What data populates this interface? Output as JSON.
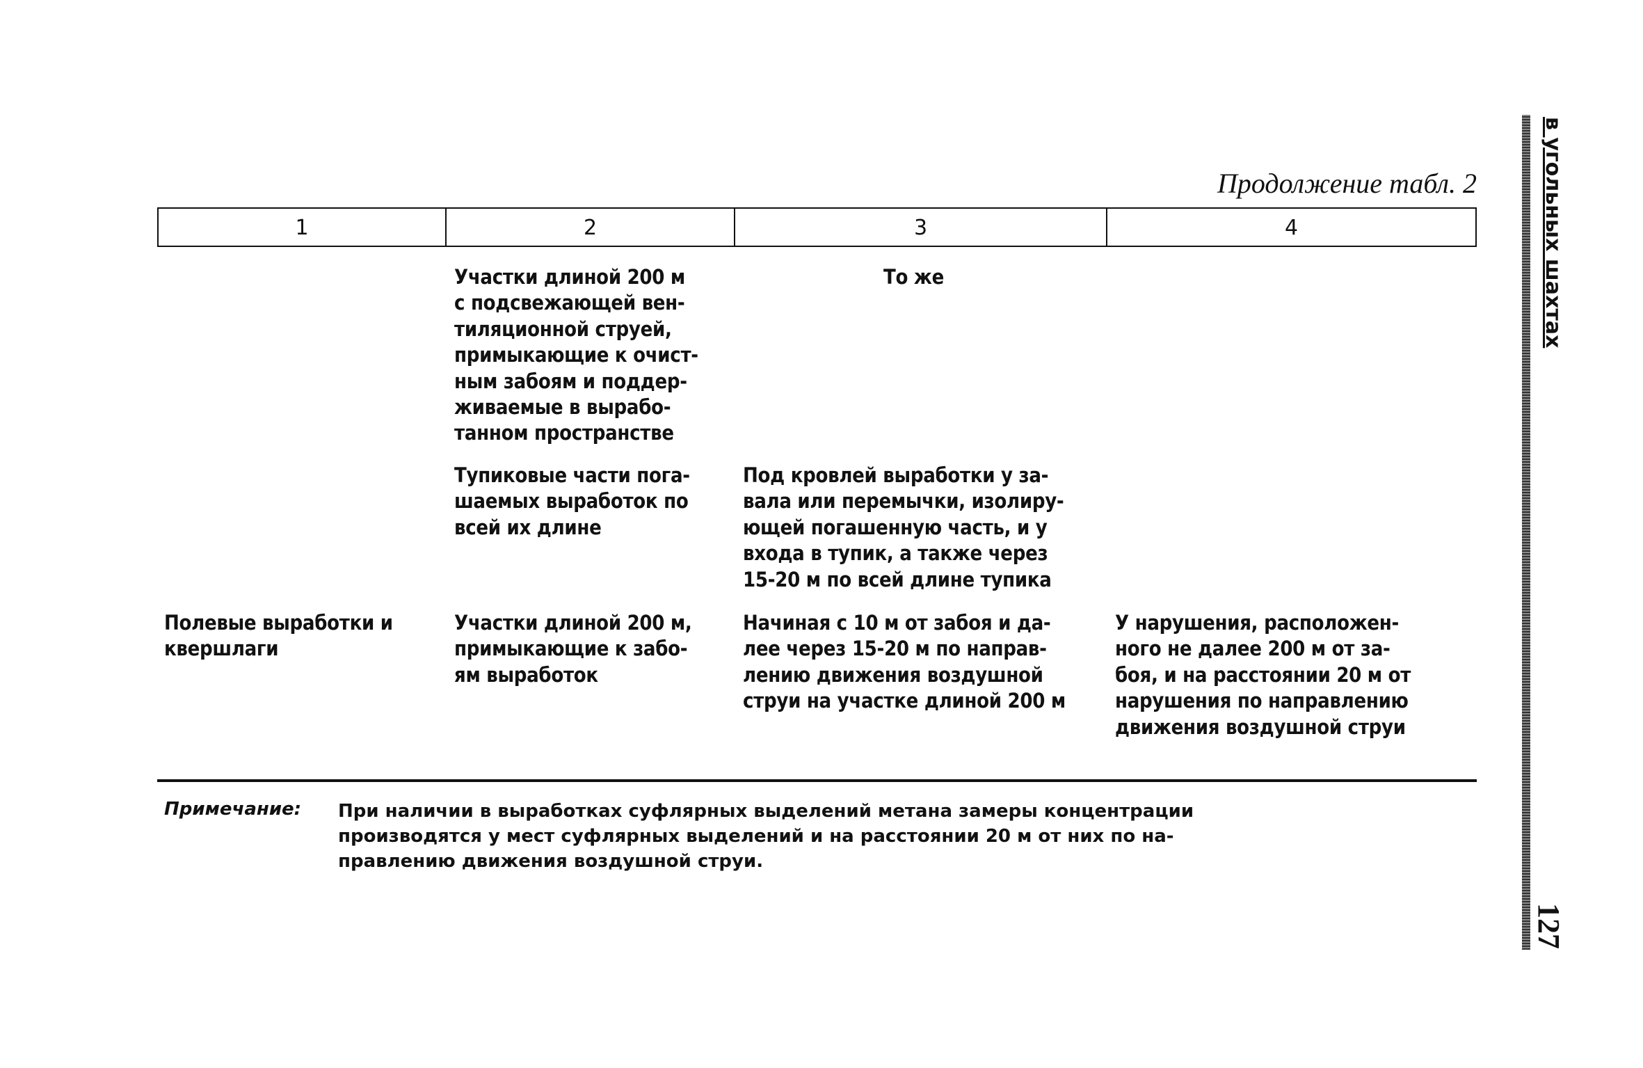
{
  "caption": "Продолжение табл. 2",
  "header": [
    "1",
    "2",
    "3",
    "4"
  ],
  "rows": [
    {
      "c1": "",
      "c2": "Участки длиной 200 м\nс подсвежающей вен-\nтиляционной струей,\nпримыкающие к очист-\nным забоям и поддер-\nживаемые в вырабо-\nтанном пространстве",
      "c3": "То же",
      "c4": ""
    },
    {
      "c1": "",
      "c2": "Тупиковые части пога-\nшаемых выработок по\nвсей их длине",
      "c3": "Под кровлей выработки у за-\nвала или перемычки, изолиру-\nющей погашенную часть, и у\nвхода в тупик, а также через\n15-20 м по всей длине тупика",
      "c4": ""
    },
    {
      "c1": "Полевые выработки и\nквершлаги",
      "c2": "Участки длиной 200 м,\nпримыкающие к забо-\nям выработок",
      "c3": "Начиная с 10 м от забоя и да-\nлее через 15-20 м по направ-\nлению движения воздушной\nструи на участке длиной 200 м",
      "c4": "У нарушения, расположен-\nного не далее 200 м от за-\nбоя, и на расстоянии 20 м от\nнарушения по направлению\nдвижения воздушной струи"
    }
  ],
  "note": {
    "label": "Примечание:",
    "text": "При наличии в выработках суфлярных выделений метана замеры концентрации\nпроизводятся у мест суфлярных выделений и на расстоянии 20 м от них по на-\nправлению движения воздушной струи."
  },
  "running_head": "в угольных шахтах",
  "page_number": "127"
}
